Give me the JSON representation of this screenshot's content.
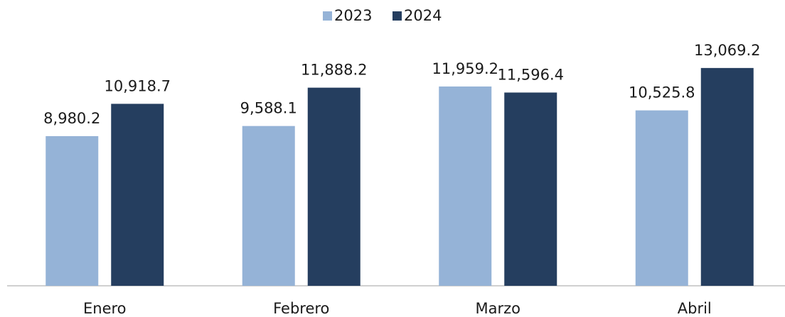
{
  "chart_data": {
    "type": "bar",
    "categories": [
      "Enero",
      "Febrero",
      "Marzo",
      "Abril"
    ],
    "series": [
      {
        "name": "2023",
        "color": "#95b3d7",
        "values": [
          8980.2,
          9588.1,
          11959.2,
          10525.8
        ],
        "value_labels": [
          "8,980.2",
          "9,588.1",
          "11,959.2",
          "10,525.8"
        ]
      },
      {
        "name": "2024",
        "color": "#253e5f",
        "values": [
          10918.7,
          11888.2,
          11596.4,
          13069.2
        ],
        "value_labels": [
          "10,918.7",
          "11,888.2",
          "11,596.4",
          "13,069.2"
        ]
      }
    ],
    "ylim": [
      0,
      14000
    ],
    "grid": false,
    "legend": "top"
  }
}
